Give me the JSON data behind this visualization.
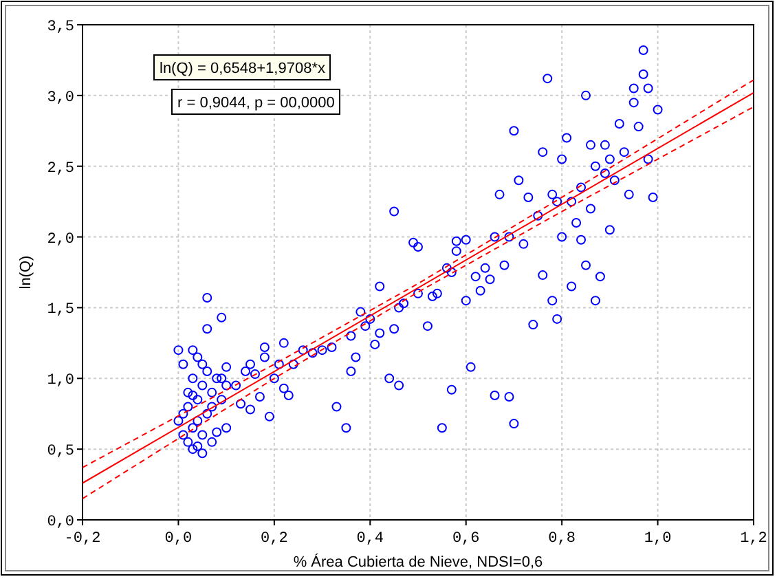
{
  "chart_data": {
    "type": "scatter",
    "xlabel": "% Área Cubierta de Nieve, NDSI=0,6",
    "ylabel": "ln(Q)",
    "annotations": [
      "ln(Q) = 0,6548+1,9708*x",
      "r = 0,9044, p = 00,0000"
    ],
    "xlim": [
      -0.2,
      1.2
    ],
    "ylim": [
      0,
      3.5
    ],
    "xticks": [
      {
        "value": -0.2,
        "label": "-0,2"
      },
      {
        "value": 0,
        "label": "0,0"
      },
      {
        "value": 0.2,
        "label": "0,2"
      },
      {
        "value": 0.4,
        "label": "0,4"
      },
      {
        "value": 0.6,
        "label": "0,6"
      },
      {
        "value": 0.8,
        "label": "0,8"
      },
      {
        "value": 1,
        "label": "1,0"
      },
      {
        "value": 1.2,
        "label": "1,2"
      }
    ],
    "yticks": [
      {
        "value": 0,
        "label": "0,0"
      },
      {
        "value": 0.5,
        "label": "0,5"
      },
      {
        "value": 1,
        "label": "1,0"
      },
      {
        "value": 1.5,
        "label": "1,5"
      },
      {
        "value": 2,
        "label": "2,0"
      },
      {
        "value": 2.5,
        "label": "2,5"
      },
      {
        "value": 3,
        "label": "3,0"
      },
      {
        "value": 3.5,
        "label": "3,5"
      }
    ],
    "grid": true,
    "series": [
      {
        "type": "scatter",
        "marker": "circle",
        "color": "#0000ff",
        "x": [
          0.0,
          0.01,
          0.01,
          0.02,
          0.02,
          0.02,
          0.03,
          0.03,
          0.03,
          0.03,
          0.04,
          0.04,
          0.04,
          0.05,
          0.05,
          0.05,
          0.05,
          0.06,
          0.06,
          0.07,
          0.07,
          0.07,
          0.08,
          0.08,
          0.09,
          0.09,
          0.1,
          0.1,
          0.1,
          0.06,
          0.06,
          0.09,
          0.0,
          0.01,
          0.03,
          0.04,
          0.12,
          0.13,
          0.14,
          0.15,
          0.15,
          0.16,
          0.17,
          0.18,
          0.18,
          0.19,
          0.2,
          0.21,
          0.22,
          0.22,
          0.23,
          0.24,
          0.26,
          0.28,
          0.3,
          0.32,
          0.33,
          0.35,
          0.36,
          0.36,
          0.37,
          0.38,
          0.39,
          0.4,
          0.41,
          0.42,
          0.42,
          0.44,
          0.45,
          0.45,
          0.46,
          0.46,
          0.47,
          0.49,
          0.5,
          0.5,
          0.52,
          0.53,
          0.54,
          0.55,
          0.56,
          0.57,
          0.57,
          0.58,
          0.58,
          0.6,
          0.61,
          0.63,
          0.64,
          0.65,
          0.66,
          0.66,
          0.67,
          0.68,
          0.69,
          0.69,
          0.7,
          0.7,
          0.71,
          0.72,
          0.73,
          0.74,
          0.75,
          0.76,
          0.76,
          0.77,
          0.78,
          0.78,
          0.79,
          0.79,
          0.8,
          0.8,
          0.81,
          0.82,
          0.82,
          0.83,
          0.84,
          0.85,
          0.85,
          0.86,
          0.87,
          0.87,
          0.88,
          0.89,
          0.89,
          0.9,
          0.91,
          0.92,
          0.93,
          0.94,
          0.95,
          0.95,
          0.96,
          0.97,
          0.97,
          0.98,
          0.99,
          1.0,
          0.98,
          0.9,
          0.86,
          0.84,
          0.62,
          0.6
        ],
        "values": [
          0.7,
          0.6,
          0.75,
          0.55,
          0.8,
          0.9,
          0.5,
          0.65,
          1.0,
          1.2,
          0.7,
          0.85,
          1.15,
          0.47,
          0.6,
          0.95,
          1.1,
          0.75,
          1.05,
          0.55,
          0.8,
          0.9,
          0.62,
          1.0,
          0.85,
          1.0,
          0.65,
          0.95,
          1.08,
          1.57,
          1.35,
          1.43,
          1.2,
          1.1,
          0.88,
          0.52,
          0.95,
          0.82,
          1.05,
          0.78,
          1.1,
          1.03,
          0.87,
          1.15,
          1.22,
          0.73,
          1.0,
          1.1,
          0.93,
          1.25,
          0.88,
          1.1,
          1.2,
          1.18,
          1.2,
          1.22,
          0.8,
          0.65,
          1.3,
          1.05,
          1.15,
          1.47,
          1.37,
          1.42,
          1.24,
          1.65,
          1.32,
          1.0,
          2.18,
          1.35,
          1.5,
          0.95,
          1.53,
          1.96,
          1.93,
          1.6,
          1.37,
          1.58,
          1.6,
          0.65,
          1.78,
          1.75,
          0.92,
          1.97,
          1.9,
          1.98,
          1.08,
          1.62,
          1.78,
          1.7,
          0.88,
          2.0,
          2.3,
          1.8,
          0.87,
          2.0,
          0.68,
          2.75,
          2.4,
          1.95,
          2.28,
          1.38,
          2.15,
          1.73,
          2.6,
          3.12,
          1.55,
          2.3,
          1.42,
          2.25,
          2.0,
          2.55,
          2.7,
          1.65,
          2.25,
          2.1,
          2.35,
          1.8,
          3.0,
          2.2,
          1.55,
          2.5,
          1.72,
          2.45,
          2.65,
          2.05,
          2.4,
          2.8,
          2.6,
          2.3,
          2.95,
          3.05,
          2.78,
          3.32,
          3.15,
          3.05,
          2.28,
          2.9,
          2.55,
          2.55,
          2.65,
          1.98,
          1.72,
          1.55
        ]
      },
      {
        "type": "line",
        "color": "#ff0000",
        "line_style": "solid",
        "x": [
          -0.2,
          1.2
        ],
        "values": [
          0.26,
          3.02
        ]
      },
      {
        "type": "line",
        "color": "#ff0000",
        "line_style": "dashed",
        "x": [
          -0.2,
          0.2,
          0.5,
          0.8,
          1.2
        ],
        "values": [
          0.37,
          1.1,
          1.67,
          2.28,
          3.11
        ]
      },
      {
        "type": "line",
        "color": "#ff0000",
        "line_style": "dashed",
        "x": [
          -0.2,
          0.2,
          0.5,
          0.8,
          1.2
        ],
        "values": [
          0.15,
          1.0,
          1.61,
          2.18,
          2.92
        ]
      }
    ]
  }
}
